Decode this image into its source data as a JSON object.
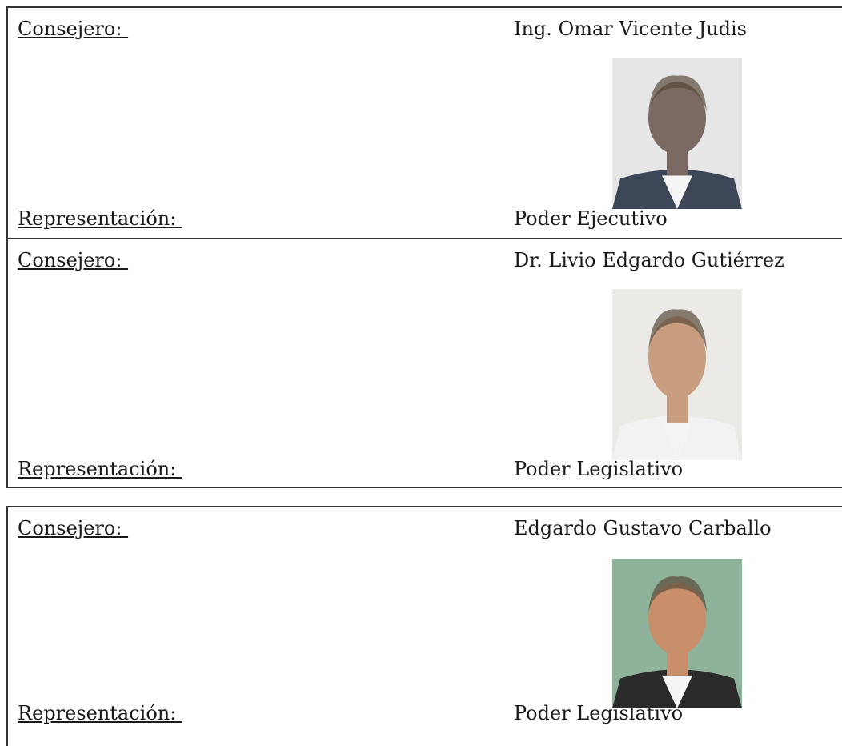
{
  "members": [
    {
      "consejero_label": "Consejero: ",
      "name": "Ing. Omar Vicente Judis",
      "representacion_label": "Representación: ",
      "representacion": "Poder Ejecutivo"
    },
    {
      "consejero_label": "Consejero: ",
      "name": "Dr. Livio Edgardo Gutiérrez",
      "representacion_label": "Representación: ",
      "representacion": "Poder Legislativo"
    },
    {
      "consejero_label": "Consejero: ",
      "name": "Edgardo Gustavo Carballo",
      "representacion_label": "Representación: ",
      "representacion": "Poder Legislativo"
    }
  ]
}
